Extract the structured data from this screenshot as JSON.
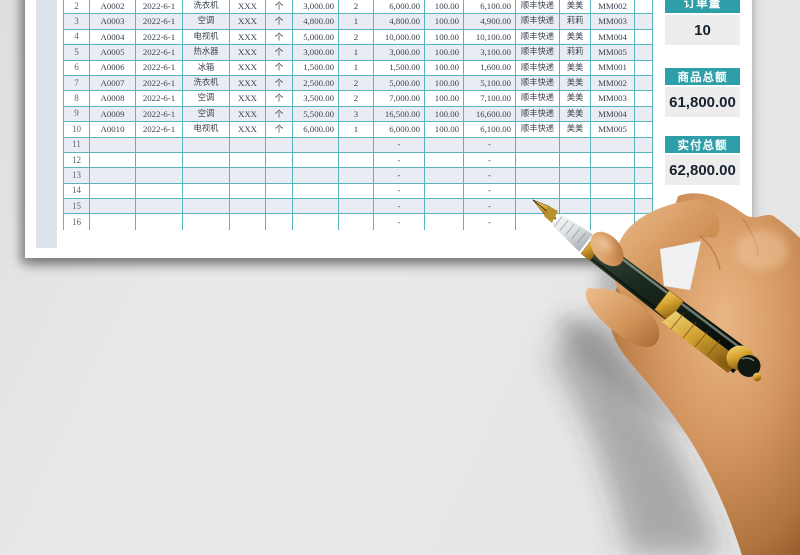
{
  "sheet": {
    "description": "sales order spreadsheet page, header row cropped above view",
    "visible_row_numbers_from": 2,
    "visible_row_numbers_to": 16
  },
  "table": {
    "rows": [
      [
        "2",
        "A0002",
        "2022-6-1",
        "洗衣机",
        "XXX",
        "个",
        "3,000.00",
        "2",
        "6,000.00",
        "100.00",
        "6,100.00",
        "顺丰快递",
        "美美",
        "MM002",
        ""
      ],
      [
        "3",
        "A0003",
        "2022-6-1",
        "空调",
        "XXX",
        "个",
        "4,800.00",
        "1",
        "4,800.00",
        "100.00",
        "4,900.00",
        "顺丰快递",
        "莉莉",
        "MM003",
        ""
      ],
      [
        "4",
        "A0004",
        "2022-6-1",
        "电视机",
        "XXX",
        "个",
        "5,000.00",
        "2",
        "10,000.00",
        "100.00",
        "10,100.00",
        "顺丰快递",
        "美美",
        "MM004",
        ""
      ],
      [
        "5",
        "A0005",
        "2022-6-1",
        "热水器",
        "XXX",
        "个",
        "3,000.00",
        "1",
        "3,000.00",
        "100.00",
        "3,100.00",
        "顺丰快递",
        "莉莉",
        "MM005",
        ""
      ],
      [
        "6",
        "A0006",
        "2022-6-1",
        "冰箱",
        "XXX",
        "个",
        "1,500.00",
        "1",
        "1,500.00",
        "100.00",
        "1,600.00",
        "顺丰快递",
        "美美",
        "MM001",
        ""
      ],
      [
        "7",
        "A0007",
        "2022-6-1",
        "洗衣机",
        "XXX",
        "个",
        "2,500.00",
        "2",
        "5,000.00",
        "100.00",
        "5,100.00",
        "顺丰快递",
        "美美",
        "MM002",
        ""
      ],
      [
        "8",
        "A0008",
        "2022-6-1",
        "空调",
        "XXX",
        "个",
        "3,500.00",
        "2",
        "7,000.00",
        "100.00",
        "7,100.00",
        "顺丰快递",
        "美美",
        "MM003",
        ""
      ],
      [
        "9",
        "A0009",
        "2022-6-1",
        "空调",
        "XXX",
        "个",
        "5,500.00",
        "3",
        "16,500.00",
        "100.00",
        "16,600.00",
        "顺丰快递",
        "美美",
        "MM004",
        ""
      ],
      [
        "10",
        "A0010",
        "2022-6-1",
        "电视机",
        "XXX",
        "个",
        "6,000.00",
        "1",
        "6,000.00",
        "100.00",
        "6,100.00",
        "顺丰快递",
        "美美",
        "MM005",
        ""
      ],
      [
        "11",
        "",
        "",
        "",
        "",
        "",
        "",
        "",
        "-",
        "",
        "-",
        "",
        "",
        "",
        ""
      ],
      [
        "12",
        "",
        "",
        "",
        "",
        "",
        "",
        "",
        "-",
        "",
        "-",
        "",
        "",
        "",
        ""
      ],
      [
        "13",
        "",
        "",
        "",
        "",
        "",
        "",
        "",
        "-",
        "",
        "-",
        "",
        "",
        "",
        ""
      ],
      [
        "14",
        "",
        "",
        "",
        "",
        "",
        "",
        "",
        "-",
        "",
        "-",
        "",
        "",
        "",
        ""
      ],
      [
        "15",
        "",
        "",
        "",
        "",
        "",
        "",
        "",
        "-",
        "",
        "-",
        "",
        "",
        "",
        ""
      ],
      [
        "16",
        "",
        "",
        "",
        "",
        "",
        "",
        "",
        "-",
        "",
        "-",
        "",
        "",
        "",
        ""
      ]
    ]
  },
  "summary": [
    {
      "label": "订单量",
      "value": "10"
    },
    {
      "label": "商品总额",
      "value": "61,800.00"
    },
    {
      "label": "实付总额",
      "value": "62,800.00"
    }
  ],
  "colors": {
    "accent_teal": "#2E9EA9",
    "table_border": "#58B5BB",
    "row_shade": "#E9EDF3",
    "badge_value_bg": "#EDEDED",
    "badge_value_text": "#18222E",
    "pen_gold": "#D8A531",
    "pen_barrel": "#16211A",
    "skin": "#CF9060"
  },
  "photo": {
    "description": "right hand holding a green-and-gold fountain pen over the sheet"
  }
}
